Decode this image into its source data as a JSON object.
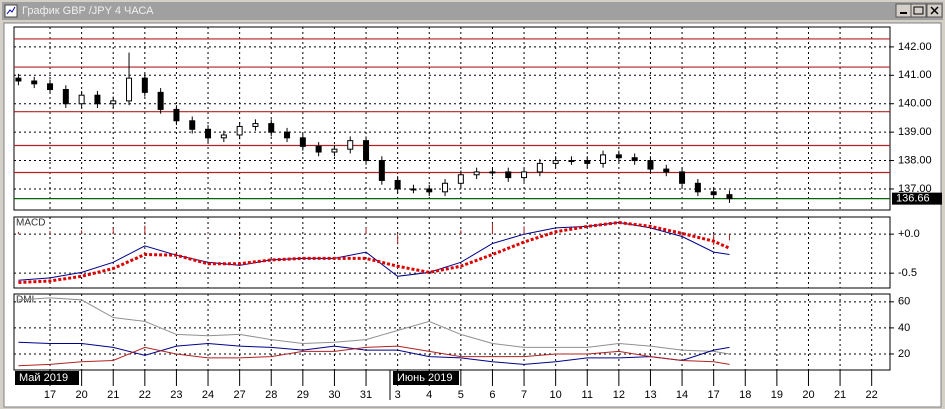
{
  "window": {
    "title": "График GBP /JPY  4 ЧАСА"
  },
  "months": [
    "Май 2019",
    "Июнь 2019"
  ],
  "chart_data": [
    {
      "type": "candlestick",
      "x": [
        -1,
        -0.5,
        0,
        0.5,
        1,
        1.5,
        2,
        2.5,
        3,
        3.5,
        4,
        4.5,
        5,
        5.5,
        6,
        6.5,
        7,
        7.5,
        8,
        8.5,
        9,
        9.5,
        10,
        10.5,
        11,
        11.5,
        12,
        12.5,
        13,
        13.5,
        14,
        14.5,
        15,
        15.5,
        16,
        16.5,
        17,
        17.5,
        18,
        18.5,
        19,
        19.5,
        20,
        20.5,
        21,
        21.5
      ],
      "open": [
        140.9,
        140.8,
        140.7,
        140.5,
        140.0,
        140.3,
        140.0,
        140.1,
        140.9,
        140.4,
        139.8,
        139.4,
        139.1,
        138.8,
        138.9,
        139.2,
        139.3,
        139.0,
        138.8,
        138.5,
        138.3,
        138.4,
        138.7,
        138.0,
        137.3,
        137.0,
        137.0,
        136.9,
        137.2,
        137.5,
        137.6,
        137.6,
        137.4,
        137.6,
        137.9,
        138.0,
        138.0,
        137.9,
        138.2,
        138.1,
        138.0,
        137.7,
        137.6,
        137.2,
        136.9,
        136.8
      ],
      "high": [
        141.05,
        140.95,
        140.85,
        140.65,
        140.45,
        140.45,
        140.25,
        141.8,
        141.05,
        140.55,
        139.95,
        139.55,
        139.25,
        139.05,
        139.35,
        139.45,
        139.45,
        139.15,
        138.95,
        138.65,
        138.55,
        138.85,
        138.85,
        138.15,
        137.45,
        137.15,
        137.15,
        137.35,
        137.65,
        137.75,
        137.75,
        137.75,
        137.75,
        138.05,
        138.15,
        138.15,
        138.15,
        138.35,
        138.35,
        138.25,
        138.15,
        137.85,
        137.75,
        137.35,
        137.05,
        136.95
      ],
      "low": [
        140.65,
        140.55,
        140.35,
        139.85,
        139.85,
        139.85,
        139.85,
        139.95,
        140.25,
        139.65,
        139.25,
        138.95,
        138.65,
        138.65,
        138.75,
        139.05,
        138.85,
        138.65,
        138.35,
        138.15,
        138.15,
        138.25,
        137.85,
        137.15,
        136.85,
        136.85,
        136.75,
        136.75,
        137.05,
        137.35,
        137.45,
        137.25,
        137.25,
        137.45,
        137.75,
        137.85,
        137.75,
        137.75,
        137.95,
        137.85,
        137.55,
        137.45,
        137.05,
        136.75,
        136.65,
        136.51
      ],
      "close": [
        140.8,
        140.7,
        140.5,
        140.0,
        140.3,
        140.0,
        140.1,
        140.9,
        140.4,
        139.8,
        139.4,
        139.1,
        138.8,
        138.9,
        139.2,
        139.3,
        139.0,
        138.8,
        138.5,
        138.3,
        138.4,
        138.7,
        138.0,
        137.3,
        137.0,
        137.0,
        136.9,
        137.2,
        137.5,
        137.6,
        137.6,
        137.4,
        137.6,
        137.9,
        138.0,
        138.0,
        137.9,
        138.2,
        138.1,
        138.0,
        137.7,
        137.6,
        137.2,
        136.9,
        136.8,
        136.66
      ],
      "color": "#000000",
      "levels": [
        {
          "value": 142.28,
          "color": "#b22222"
        },
        {
          "value": 141.29,
          "color": "#b22222"
        },
        {
          "value": 139.72,
          "color": "#b22222"
        },
        {
          "value": 138.53,
          "color": "#b22222"
        },
        {
          "value": 137.58,
          "color": "#b22222"
        },
        {
          "value": 136.66,
          "color": "#006400"
        }
      ],
      "last_price": {
        "value": 136.66,
        "label": "136.66"
      },
      "xlim": [
        -1.14,
        26.58
      ],
      "xticks": [
        {
          "value": 0,
          "label": "17"
        },
        {
          "value": 1,
          "label": "20"
        },
        {
          "value": 2,
          "label": "21"
        },
        {
          "value": 3,
          "label": "22"
        },
        {
          "value": 4,
          "label": "23"
        },
        {
          "value": 5,
          "label": "24"
        },
        {
          "value": 6,
          "label": "27"
        },
        {
          "value": 7,
          "label": "28"
        },
        {
          "value": 8,
          "label": "29"
        },
        {
          "value": 9,
          "label": "30"
        },
        {
          "value": 10,
          "label": "31"
        },
        {
          "value": 11,
          "label": "3"
        },
        {
          "value": 12,
          "label": "4"
        },
        {
          "value": 13,
          "label": "5"
        },
        {
          "value": 14,
          "label": "6"
        },
        {
          "value": 15,
          "label": "7"
        },
        {
          "value": 16,
          "label": "10"
        },
        {
          "value": 17,
          "label": "11"
        },
        {
          "value": 18,
          "label": "12"
        },
        {
          "value": 19,
          "label": "13"
        },
        {
          "value": 20,
          "label": "14"
        },
        {
          "value": 21,
          "label": "17"
        },
        {
          "value": 22,
          "label": "18"
        },
        {
          "value": 23,
          "label": "19"
        },
        {
          "value": 24,
          "label": "20"
        },
        {
          "value": 25,
          "label": "21"
        },
        {
          "value": 26,
          "label": "22"
        }
      ],
      "ylim": [
        136.26,
        142.7
      ],
      "yticks": [
        {
          "value": 142,
          "label": "142.00"
        },
        {
          "value": 141,
          "label": "141.00"
        },
        {
          "value": 140,
          "label": "140.00"
        },
        {
          "value": 139,
          "label": "139.00"
        },
        {
          "value": 138,
          "label": "138.00"
        },
        {
          "value": 137,
          "label": "137.00"
        }
      ],
      "grid": true
    },
    {
      "type": "line",
      "title": "MACD",
      "x": [
        -1,
        0,
        1,
        2,
        3,
        4,
        5,
        6,
        7,
        8,
        9,
        10,
        11,
        12,
        13,
        14,
        15,
        16,
        17,
        18,
        19,
        20,
        21,
        21.5
      ],
      "histogram": {
        "color": "#b22222",
        "values": [
          0.03,
          0.04,
          0.05,
          0.08,
          0.11,
          0,
          0.02,
          -0.02,
          0,
          0,
          0,
          0.08,
          -0.13,
          0,
          0.05,
          0.14,
          0.1,
          0.05,
          0,
          0,
          -0.02,
          -0.04,
          -0.14,
          -0.08
        ]
      },
      "series": [
        {
          "color": "#00008b",
          "style": "solid",
          "values": [
            -0.59,
            -0.56,
            -0.49,
            -0.36,
            -0.15,
            -0.27,
            -0.36,
            -0.4,
            -0.33,
            -0.31,
            -0.31,
            -0.23,
            -0.54,
            -0.49,
            -0.36,
            -0.12,
            0.0,
            0.08,
            0.1,
            0.15,
            0.08,
            -0.03,
            -0.23,
            -0.26
          ]
        },
        {
          "color": "#dd0000",
          "style": "dotted",
          "values": [
            -0.62,
            -0.6,
            -0.54,
            -0.44,
            -0.26,
            -0.27,
            -0.38,
            -0.38,
            -0.33,
            -0.31,
            -0.31,
            -0.31,
            -0.41,
            -0.49,
            -0.41,
            -0.26,
            -0.1,
            0.03,
            0.1,
            0.15,
            0.1,
            0.01,
            -0.09,
            -0.18
          ]
        }
      ],
      "xlim": [
        -1.14,
        26.58
      ],
      "ylim": [
        -0.69,
        0.22
      ],
      "yticks": [
        {
          "value": 0,
          "label": "+0.0"
        },
        {
          "value": -0.5,
          "label": "-0.5"
        }
      ],
      "grid": true
    },
    {
      "type": "line",
      "title": "DMI",
      "x": [
        -1,
        0,
        1,
        2,
        3,
        4,
        5,
        6,
        7,
        8,
        9,
        10,
        11,
        12,
        13,
        14,
        15,
        16,
        17,
        18,
        19,
        20,
        21,
        21.5
      ],
      "series": [
        {
          "color": "#909090",
          "style": "solid",
          "values": [
            61.5,
            63,
            61.5,
            48,
            45,
            35,
            34,
            35,
            31,
            28,
            29,
            31,
            38,
            45,
            35,
            28,
            25,
            25,
            25,
            28,
            26,
            23,
            22,
            20
          ]
        },
        {
          "color": "#00008b",
          "style": "solid",
          "values": [
            29,
            28,
            28,
            25,
            19,
            26,
            28,
            26,
            25,
            23,
            26,
            23,
            23,
            18,
            17,
            14,
            12,
            14,
            17,
            17,
            18,
            15,
            23,
            25
          ]
        },
        {
          "color": "#b22222",
          "style": "solid",
          "values": [
            11,
            12,
            14,
            15,
            25,
            20,
            17,
            17,
            18,
            22,
            22,
            25,
            26,
            22,
            18,
            18,
            18,
            20,
            20,
            22,
            18,
            15,
            14,
            12
          ]
        }
      ],
      "xlim": [
        -1.14,
        26.58
      ],
      "ylim": [
        7.7,
        66
      ],
      "yticks": [
        60,
        40,
        20
      ],
      "grid": true
    }
  ]
}
